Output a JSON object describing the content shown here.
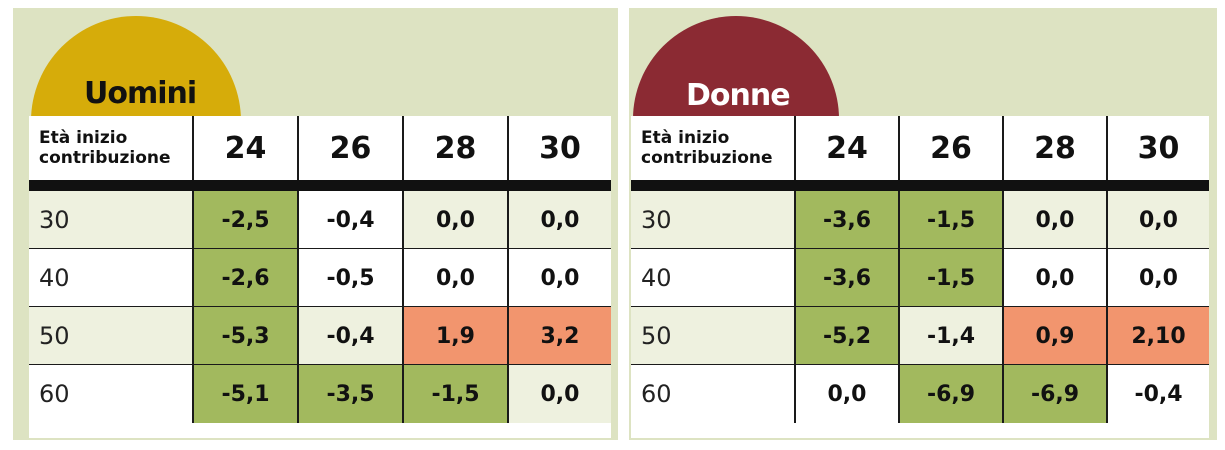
{
  "colors": {
    "background": "#dde3c2",
    "men_tab": "#d6ac0a",
    "women_tab": "#8b2a33",
    "men_title": "#111111",
    "women_title": "#ffffff",
    "green_cell": "#a2b95e",
    "orange_cell": "#f2956e",
    "white_cell": "#ffffff",
    "stripe_row": "#eef1df"
  },
  "chart_data": [
    {
      "type": "table",
      "title": "Uomini",
      "row_header": "Età inizio contribuzione",
      "columns": [
        "24",
        "26",
        "28",
        "30"
      ],
      "rows": [
        {
          "label": "30",
          "values": [
            "-2,5",
            "-0,4",
            "0,0",
            "0,0"
          ],
          "fills": [
            "green",
            "white",
            "stripe",
            "stripe"
          ]
        },
        {
          "label": "40",
          "values": [
            "-2,6",
            "-0,5",
            "0,0",
            "0,0"
          ],
          "fills": [
            "green",
            "white",
            "white",
            "white"
          ]
        },
        {
          "label": "50",
          "values": [
            "-5,3",
            "-0,4",
            "1,9",
            "3,2"
          ],
          "fills": [
            "green",
            "stripe",
            "orange",
            "orange"
          ]
        },
        {
          "label": "60",
          "values": [
            "-5,1",
            "-3,5",
            "-1,5",
            "0,0"
          ],
          "fills": [
            "green",
            "green",
            "green",
            "stripe"
          ]
        }
      ]
    },
    {
      "type": "table",
      "title": "Donne",
      "row_header": "Età inizio contribuzione",
      "columns": [
        "24",
        "26",
        "28",
        "30"
      ],
      "rows": [
        {
          "label": "30",
          "values": [
            "-3,6",
            "-1,5",
            "0,0",
            "0,0"
          ],
          "fills": [
            "green",
            "green",
            "stripe",
            "stripe"
          ]
        },
        {
          "label": "40",
          "values": [
            "-3,6",
            "-1,5",
            "0,0",
            "0,0"
          ],
          "fills": [
            "green",
            "green",
            "white",
            "white"
          ]
        },
        {
          "label": "50",
          "values": [
            "-5,2",
            "-1,4",
            "0,9",
            "2,10"
          ],
          "fills": [
            "green",
            "stripe",
            "orange",
            "orange"
          ]
        },
        {
          "label": "60",
          "values": [
            "0,0",
            "-6,9",
            "-6,9",
            "-0,4"
          ],
          "fills": [
            "white",
            "green",
            "green",
            "white"
          ]
        }
      ]
    }
  ]
}
